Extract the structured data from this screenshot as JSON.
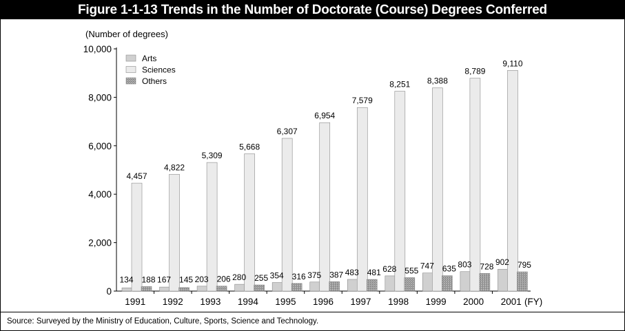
{
  "figure": {
    "title": "Figure 1-1-13  Trends in the Number of Doctorate (Course) Degrees Conferred",
    "source": "Source: Surveyed by the Ministry of Education, Culture, Sports, Science and Technology."
  },
  "chart_data": {
    "type": "bar",
    "title": "Figure 1-1-13  Trends in the Number of Doctorate (Course) Degrees Conferred",
    "ylabel": "(Number of degrees)",
    "xlabel": "",
    "x_unit_label": "(FY)",
    "categories": [
      "1991",
      "1992",
      "1993",
      "1994",
      "1995",
      "1996",
      "1997",
      "1998",
      "1999",
      "2000",
      "2001"
    ],
    "ylim": [
      0,
      10000
    ],
    "yticks": [
      0,
      2000,
      4000,
      6000,
      8000,
      10000
    ],
    "ytick_labels": [
      "0",
      "2,000",
      "4,000",
      "6,000",
      "8,000",
      "10,000"
    ],
    "grid": false,
    "legend_position": "top-left",
    "series": [
      {
        "name": "Arts",
        "color": "#d0d0d0",
        "values": [
          134,
          167,
          203,
          280,
          354,
          375,
          483,
          628,
          747,
          803,
          902
        ],
        "labels": [
          "134",
          "167",
          "203",
          "280",
          "354",
          "375",
          "483",
          "628",
          "747",
          "803",
          "902"
        ]
      },
      {
        "name": "Sciences",
        "color": "#ebebeb",
        "values": [
          4457,
          4822,
          5309,
          5668,
          6307,
          6954,
          7579,
          8251,
          8388,
          8789,
          9110
        ],
        "labels": [
          "4,457",
          "4,822",
          "5,309",
          "5,668",
          "6,307",
          "6,954",
          "7,579",
          "8,251",
          "8,388",
          "8,789",
          "9,110"
        ]
      },
      {
        "name": "Others",
        "color": "#9a9a9a",
        "values": [
          188,
          145,
          206,
          255,
          316,
          387,
          481,
          555,
          635,
          728,
          795
        ],
        "labels": [
          "188",
          "145",
          "206",
          "255",
          "316",
          "387",
          "481",
          "555",
          "635",
          "728",
          "795"
        ]
      }
    ]
  }
}
